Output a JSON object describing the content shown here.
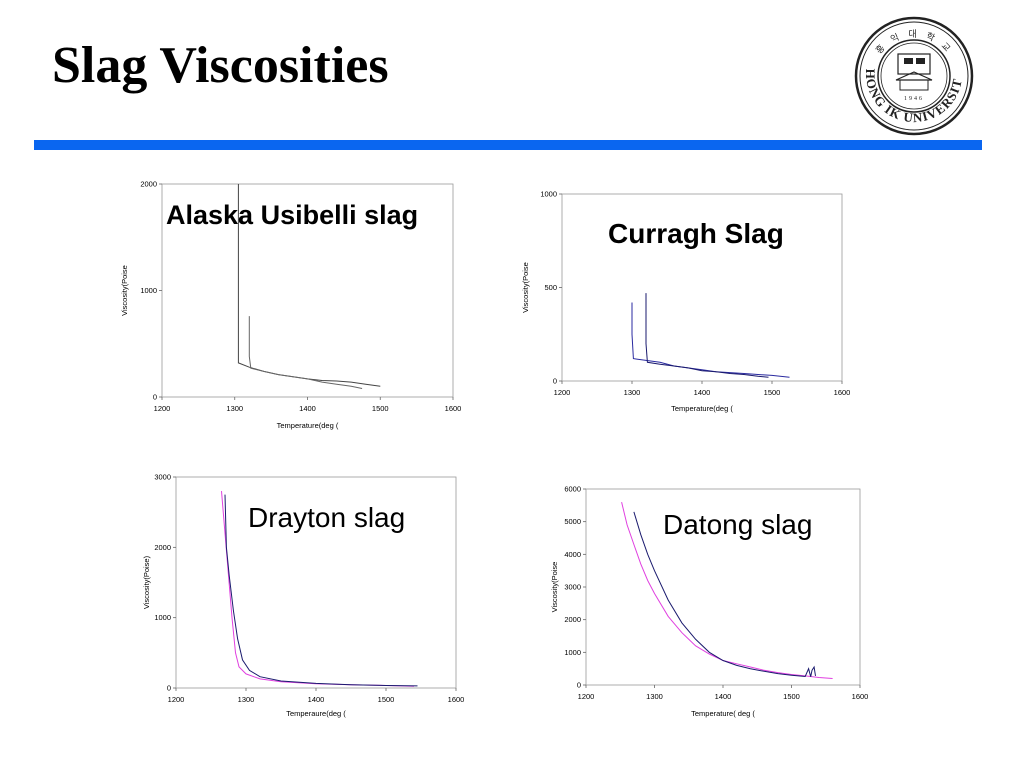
{
  "slide": {
    "title": "Slag Viscosities"
  },
  "logo": {
    "name": "HONG IK UNIVERSITY",
    "year": "1946",
    "top_text": "홍 익 대 학 교"
  },
  "colors": {
    "accent_rule": "#0a66f0",
    "series_dark": "#1a1a6e",
    "series_blue": "#2a2aa0",
    "series_magenta": "#e040e0",
    "series_gray": "#444444"
  },
  "chart_data": [
    {
      "type": "line",
      "title": "Alaska Usibelli slag",
      "xlabel": "Temperature(deg (",
      "ylabel": "Viscosity(Poise",
      "xlim": [
        1200,
        1600
      ],
      "ylim": [
        0,
        2000
      ],
      "xticks": [
        "1200",
        "1300",
        "1400",
        "1500",
        "1600"
      ],
      "yticks": [
        "0",
        "1000",
        "2000"
      ],
      "series": [
        {
          "color": "#444444",
          "x": [
            1305,
            1305,
            1305,
            1320,
            1340,
            1360,
            1380,
            1400,
            1420,
            1440,
            1460,
            1480,
            1500
          ],
          "y": [
            2000,
            1100,
            320,
            280,
            240,
            210,
            190,
            170,
            155,
            150,
            140,
            120,
            100
          ]
        },
        {
          "color": "#666666",
          "x": [
            1320,
            1320,
            1322,
            1340,
            1360,
            1380,
            1400,
            1420,
            1440,
            1460,
            1475
          ],
          "y": [
            760,
            380,
            270,
            240,
            210,
            190,
            170,
            140,
            120,
            100,
            80
          ]
        }
      ]
    },
    {
      "type": "line",
      "title": "Curragh Slag",
      "xlabel": "Temperature(deg (",
      "ylabel": "Viscosity(Poise",
      "xlim": [
        1200,
        1600
      ],
      "ylim": [
        0,
        1000
      ],
      "xticks": [
        "1200",
        "1300",
        "1400",
        "1500",
        "1600"
      ],
      "yticks": [
        "0",
        "500",
        "1000"
      ],
      "series": [
        {
          "color": "#2a2aa0",
          "x": [
            1300,
            1300,
            1302,
            1320,
            1340,
            1360,
            1380,
            1400,
            1420,
            1440,
            1460,
            1480,
            1500,
            1525
          ],
          "y": [
            420,
            250,
            120,
            110,
            100,
            80,
            70,
            60,
            50,
            45,
            40,
            35,
            30,
            20
          ]
        },
        {
          "color": "#1a1a6e",
          "x": [
            1320,
            1320,
            1322,
            1340,
            1360,
            1380,
            1400,
            1420,
            1440,
            1460,
            1480,
            1495
          ],
          "y": [
            470,
            200,
            100,
            90,
            80,
            70,
            55,
            50,
            40,
            35,
            25,
            20
          ]
        }
      ]
    },
    {
      "type": "line",
      "title": "Drayton slag",
      "xlabel": "Temperaure(deg (",
      "ylabel": "Viscosity(Poise)",
      "xlim": [
        1200,
        1600
      ],
      "ylim": [
        0,
        3000
      ],
      "xticks": [
        "1200",
        "1300",
        "1400",
        "1500",
        "1600"
      ],
      "yticks": [
        "0",
        "1000",
        "2000",
        "3000"
      ],
      "series": [
        {
          "color": "#e040e0",
          "x": [
            1265,
            1270,
            1275,
            1280,
            1285,
            1290,
            1300,
            1320,
            1350,
            1400,
            1450,
            1500,
            1540
          ],
          "y": [
            2800,
            2200,
            1600,
            1000,
            500,
            300,
            200,
            130,
            90,
            60,
            45,
            35,
            25
          ]
        },
        {
          "color": "#1a1a6e",
          "x": [
            1270,
            1272,
            1276,
            1282,
            1288,
            1295,
            1305,
            1320,
            1350,
            1400,
            1450,
            1500,
            1545
          ],
          "y": [
            2750,
            2000,
            1600,
            1100,
            700,
            400,
            250,
            160,
            100,
            65,
            45,
            35,
            30
          ]
        }
      ]
    },
    {
      "type": "line",
      "title": "Datong slag",
      "xlabel": "Temperature( deg (",
      "ylabel": "Viscosity(Poise",
      "xlim": [
        1200,
        1600
      ],
      "ylim": [
        0,
        6000
      ],
      "xticks": [
        "1200",
        "1300",
        "1400",
        "1500",
        "1600"
      ],
      "yticks": [
        "0",
        "1000",
        "2000",
        "3000",
        "4000",
        "5000",
        "6000"
      ],
      "series": [
        {
          "color": "#e040e0",
          "x": [
            1252,
            1260,
            1270,
            1280,
            1290,
            1300,
            1320,
            1340,
            1360,
            1380,
            1400,
            1420,
            1440,
            1460,
            1480,
            1500,
            1520,
            1540,
            1560
          ],
          "y": [
            5600,
            4900,
            4300,
            3700,
            3200,
            2800,
            2100,
            1600,
            1200,
            950,
            750,
            650,
            550,
            450,
            380,
            320,
            280,
            230,
            200
          ]
        },
        {
          "color": "#1a1a6e",
          "x": [
            1270,
            1280,
            1290,
            1300,
            1320,
            1340,
            1360,
            1380,
            1400,
            1420,
            1440,
            1460,
            1480,
            1500,
            1520,
            1525,
            1528,
            1530,
            1533,
            1535
          ],
          "y": [
            5300,
            4600,
            4000,
            3500,
            2600,
            1900,
            1400,
            1000,
            750,
            600,
            500,
            420,
            350,
            300,
            260,
            500,
            250,
            450,
            550,
            280
          ]
        }
      ]
    }
  ]
}
